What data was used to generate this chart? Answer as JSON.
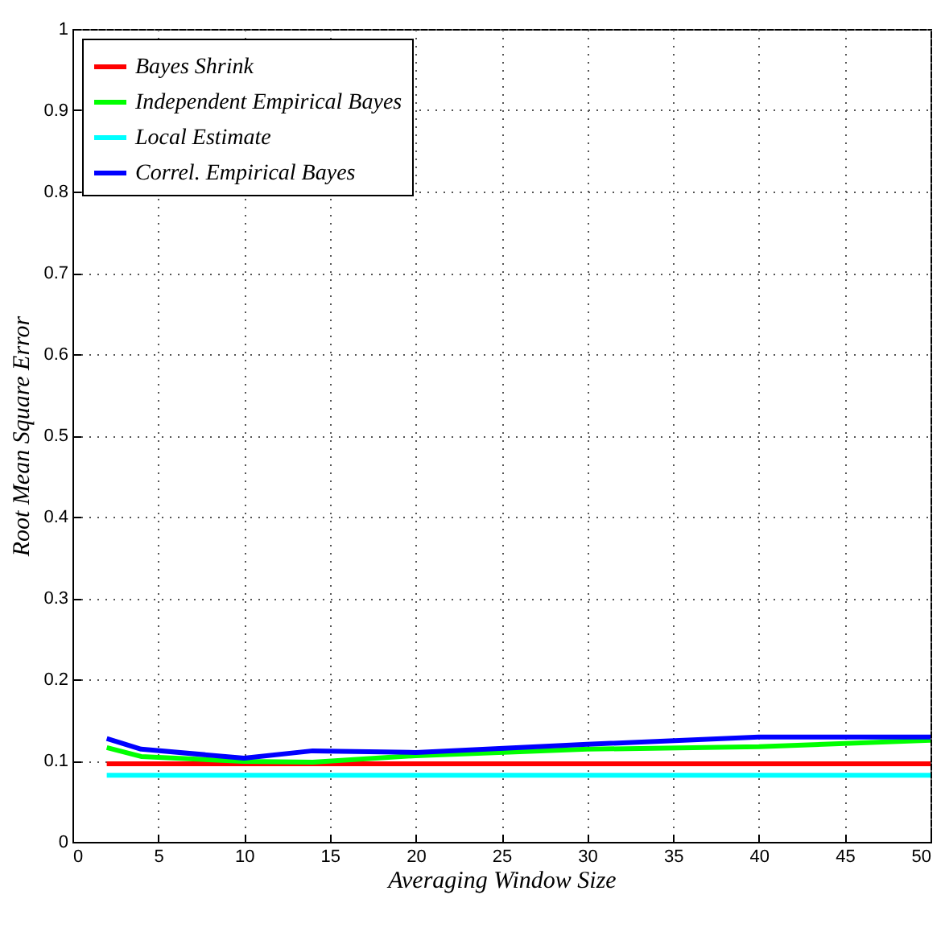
{
  "chart_data": {
    "type": "line",
    "xlabel": "Averaging Window Size",
    "ylabel": "Root Mean Square Error",
    "xlim": [
      0,
      50
    ],
    "xticks": [
      0,
      5,
      10,
      15,
      20,
      25,
      30,
      35,
      40,
      45,
      50
    ],
    "ylim": [
      0,
      1
    ],
    "yticks": [
      0,
      0.1,
      0.2,
      0.3,
      0.4,
      0.5,
      0.6,
      0.7,
      0.8,
      0.9,
      1
    ],
    "grid": true,
    "legend": "top left",
    "x": [
      2,
      4,
      10,
      14,
      20,
      30,
      40,
      50
    ],
    "series": [
      {
        "name": "Bayes Shrink",
        "color": "#ff0000",
        "values": [
          0.096,
          0.096,
          0.096,
          0.096,
          0.096,
          0.096,
          0.096,
          0.096
        ]
      },
      {
        "name": "Independent Empirical Bayes",
        "color": "#00ff00",
        "values": [
          0.116,
          0.105,
          0.099,
          0.098,
          0.106,
          0.114,
          0.117,
          0.125
        ]
      },
      {
        "name": "Local Estimate",
        "color": "#00ffff",
        "values": [
          0.082,
          0.082,
          0.082,
          0.082,
          0.082,
          0.082,
          0.082,
          0.082
        ]
      },
      {
        "name": "Correl. Empirical Bayes",
        "color": "#0000ff",
        "values": [
          0.127,
          0.114,
          0.103,
          0.112,
          0.11,
          0.12,
          0.129,
          0.129
        ]
      }
    ]
  }
}
